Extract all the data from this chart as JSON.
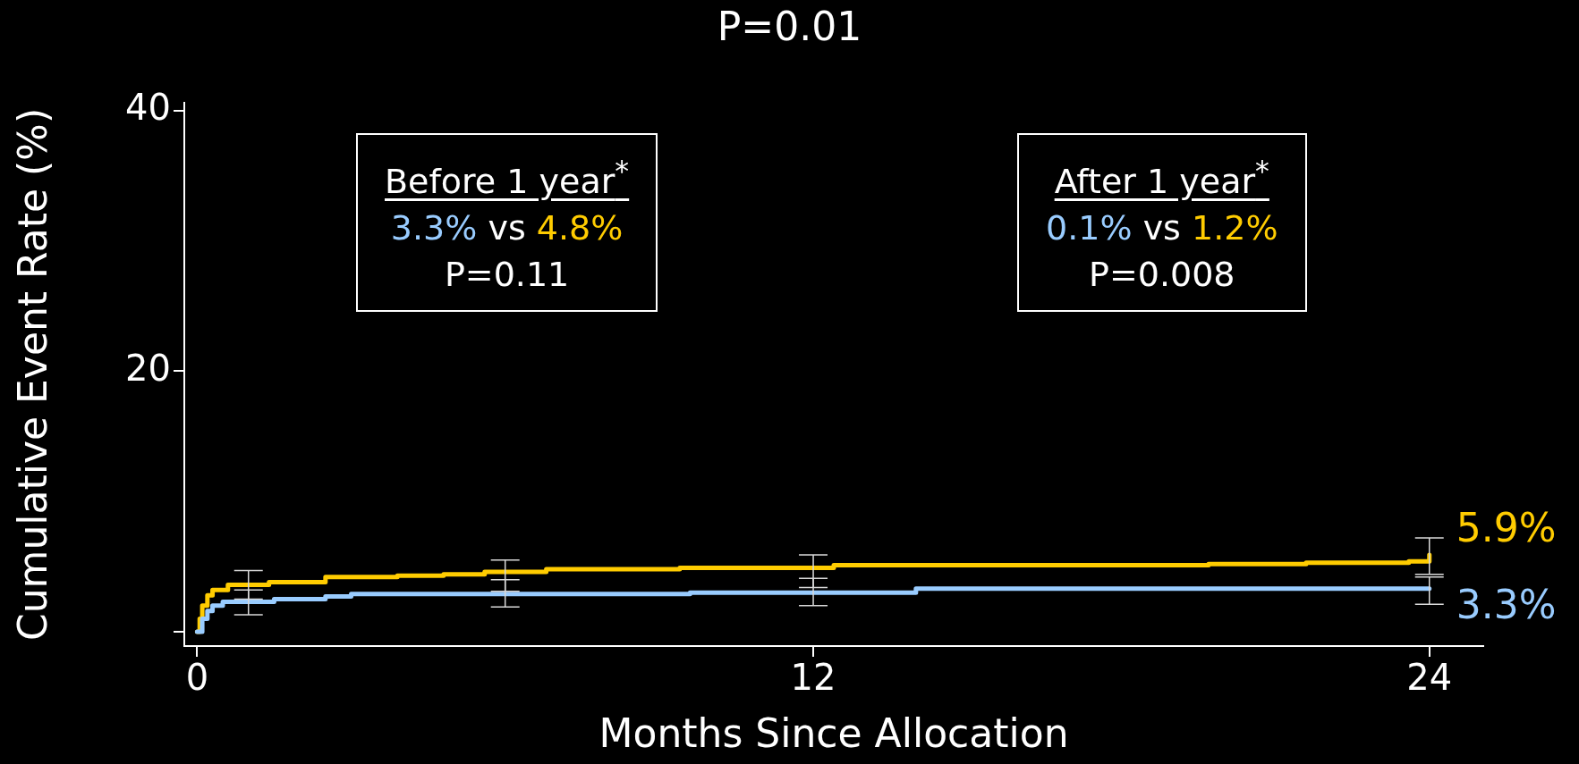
{
  "chart_data": {
    "type": "step",
    "title": "P=0.01",
    "xlabel": "Months Since Allocation",
    "ylabel": "Cumulative Event Rate (%)",
    "xlim": [
      -0.25,
      25.05
    ],
    "xticks": [
      0,
      12,
      24
    ],
    "ylim": [
      -1.1,
      40.6
    ],
    "yticks": [
      {
        "value": 0,
        "label": null
      },
      20,
      40
    ],
    "grid": false,
    "legend": false,
    "marker": "none",
    "line_style": "solid",
    "annotations": [
      "Before 1 year$^{*}$",
      "3.3% vs 4.8%",
      "P=0.11",
      "After 1 year$^{*}$",
      "0.1% vs 1.2%",
      "P=0.008"
    ],
    "series": [
      {
        "color": "#99ccff",
        "x": [
          0,
          0.1,
          0.2,
          0.3,
          0.5,
          1,
          1.5,
          2.5,
          3,
          6,
          9.6,
          12,
          14,
          24
        ],
        "values": [
          0,
          1,
          1.6,
          2,
          2.3,
          2.3,
          2.5,
          2.7,
          2.9,
          2.9,
          3.0,
          3.0,
          3.3,
          3.3
        ],
        "errors": [
          null,
          null,
          null,
          null,
          null,
          [
            1.3,
            3.2
          ],
          null,
          null,
          null,
          [
            1.9,
            4.0
          ],
          null,
          [
            2.0,
            4.1
          ],
          null,
          [
            2.1,
            4.2
          ]
        ],
        "value_labels": [
          null,
          null,
          null,
          null,
          null,
          null,
          null,
          null,
          null,
          null,
          null,
          null,
          null,
          "3.3%"
        ]
      },
      {
        "color": "#ffcc00",
        "x": [
          0,
          0.05,
          0.1,
          0.2,
          0.3,
          0.6,
          1,
          1.4,
          2.5,
          3.9,
          4.8,
          5.6,
          6,
          6.8,
          9.4,
          12,
          12.4,
          13.3,
          19.7,
          21.6,
          23.6,
          24
        ],
        "values": [
          0,
          1,
          2,
          2.8,
          3.2,
          3.6,
          3.6,
          3.8,
          4.2,
          4.3,
          4.4,
          4.6,
          4.6,
          4.8,
          4.9,
          4.9,
          5.1,
          5.1,
          5.2,
          5.3,
          5.4,
          5.9
        ],
        "errors": [
          null,
          null,
          null,
          null,
          null,
          null,
          [
            2.5,
            4.7
          ],
          null,
          null,
          null,
          null,
          null,
          [
            3.1,
            5.5
          ],
          null,
          null,
          [
            3.4,
            5.9
          ],
          null,
          null,
          null,
          null,
          null,
          [
            4.4,
            7.2
          ]
        ],
        "value_labels": [
          null,
          null,
          null,
          null,
          null,
          null,
          null,
          null,
          null,
          null,
          null,
          null,
          null,
          null,
          null,
          null,
          null,
          null,
          null,
          null,
          null,
          "5.9%"
        ]
      }
    ]
  }
}
